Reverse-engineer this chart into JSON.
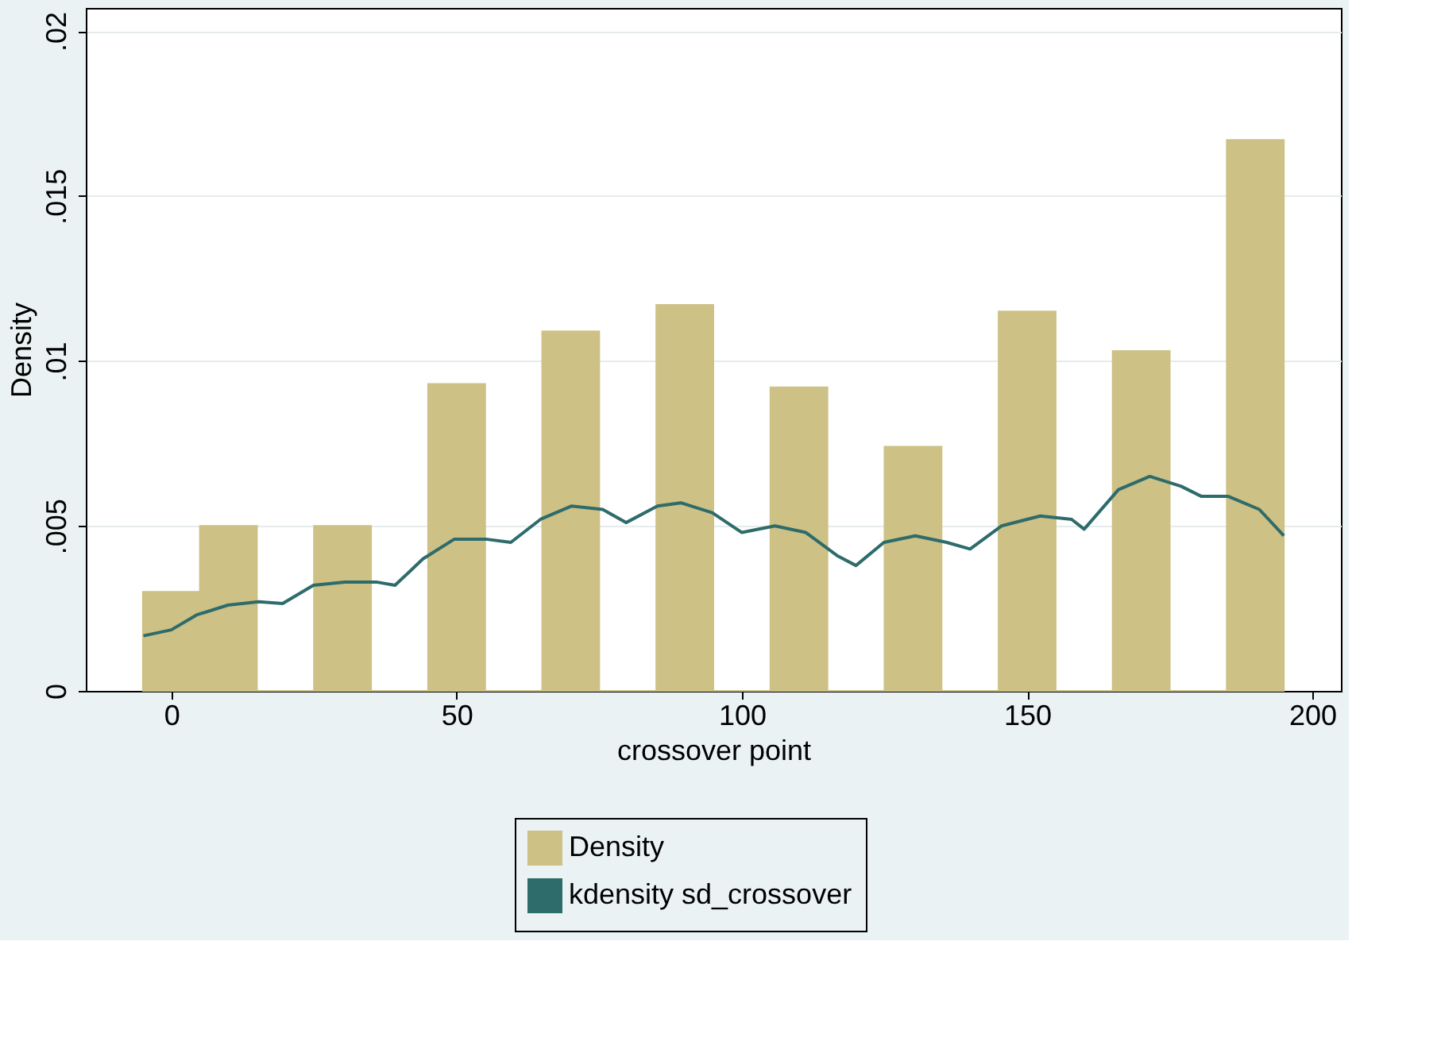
{
  "chart_data": {
    "type": "histogram",
    "xlabel": "crossover point",
    "ylabel": "Density",
    "bins": [
      -5,
      5,
      15,
      25,
      35,
      45,
      55,
      65,
      75,
      85,
      95,
      105,
      115,
      125,
      135,
      145,
      155,
      165,
      175,
      185,
      195
    ],
    "series": [
      {
        "name": "Density",
        "color": "#cdc185",
        "values": [
          0.003,
          0.005,
          0,
          0.005,
          0,
          0.0093,
          0,
          0.0109,
          0,
          0.0117,
          0,
          0.0092,
          0,
          0.0074,
          0,
          0.0115,
          0,
          0.0103,
          0,
          0.0167
        ]
      },
      {
        "name": "kdensity sd_crossover",
        "type": "line",
        "color": "#2e6b6b",
        "x": [
          -4.9,
          0,
          4.4,
          9.9,
          15.3,
          19.5,
          24.9,
          30.4,
          35.9,
          39.2,
          44.1,
          49.6,
          55.1,
          59.5,
          64.7,
          70.1,
          75.6,
          79.7,
          85.2,
          89.3,
          94.8,
          100,
          105.8,
          111.2,
          116.7,
          120,
          124.9,
          130.4,
          135.9,
          140,
          145.5,
          152.3,
          157.8,
          160,
          166,
          171.5,
          177,
          180.5,
          185.2,
          190.7,
          195
        ],
        "values": [
          0.00167,
          0.00185,
          0.0023,
          0.0026,
          0.0027,
          0.00265,
          0.0032,
          0.0033,
          0.0033,
          0.0032,
          0.004,
          0.0046,
          0.0046,
          0.0045,
          0.0052,
          0.0056,
          0.0055,
          0.0051,
          0.0056,
          0.0057,
          0.0054,
          0.0048,
          0.005,
          0.0048,
          0.0041,
          0.0038,
          0.0045,
          0.0047,
          0.0045,
          0.0043,
          0.005,
          0.0053,
          0.0052,
          0.0049,
          0.0061,
          0.0065,
          0.0062,
          0.0059,
          0.0059,
          0.0055,
          0.0047
        ]
      }
    ],
    "xlim": [
      -15,
      205
    ],
    "xticks": [
      0,
      50,
      100,
      150,
      200
    ],
    "ylim": [
      0,
      0.0207
    ],
    "yticks": [
      {
        "value": 0,
        "label": "0"
      },
      {
        "value": 0.005,
        "label": ".005"
      },
      {
        "value": 0.01,
        "label": ".01"
      },
      {
        "value": 0.015,
        "label": ".015"
      },
      {
        "value": 0.02,
        "label": ".02"
      }
    ],
    "grid": "y",
    "legend": "bottom"
  }
}
